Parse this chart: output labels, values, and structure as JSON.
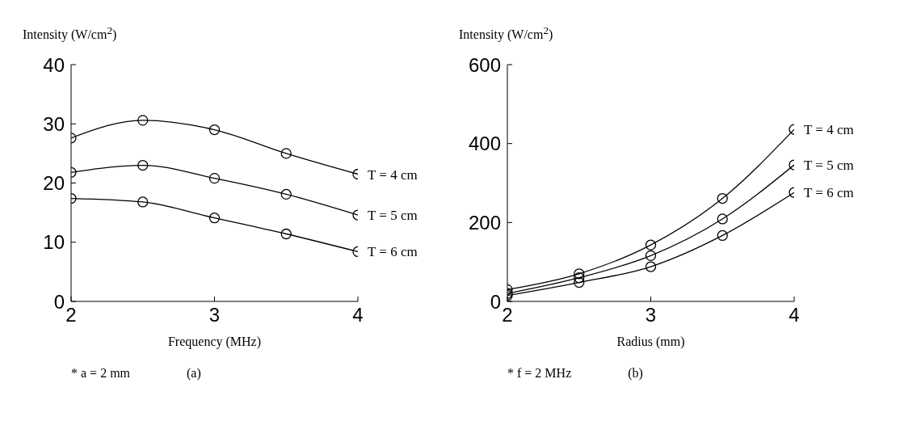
{
  "chart_data": [
    {
      "type": "line",
      "ylabel": "Intensity (W/cm$^{2}$)",
      "xlabel": "Frequency (MHz)",
      "x": [
        2,
        2.5,
        3,
        3.5,
        4
      ],
      "xlim": [
        2,
        4
      ],
      "xticks": [
        2,
        3,
        4
      ],
      "ylim": [
        0,
        40
      ],
      "yticks": [
        0,
        10,
        20,
        30,
        40
      ],
      "grid": false,
      "legend": false,
      "marker": "circle",
      "line_style": "solid",
      "series": [
        {
          "name": "T = 4 cm",
          "color": "#000000",
          "values": [
            27.6,
            30.6,
            29.0,
            25.0,
            21.5
          ]
        },
        {
          "name": "T = 5 cm",
          "color": "#000000",
          "values": [
            21.8,
            23.0,
            20.8,
            18.1,
            14.6
          ]
        },
        {
          "name": "T = 6 cm",
          "color": "#000000",
          "values": [
            17.4,
            16.8,
            14.1,
            11.4,
            8.4
          ]
        }
      ],
      "annotations": [
        "* a = 2 mm",
        "(a)"
      ]
    },
    {
      "type": "line",
      "ylabel": "Intensity (W/cm$^{2}$)",
      "xlabel": "Radius (mm)",
      "x": [
        2,
        2.5,
        3,
        3.5,
        4
      ],
      "xlim": [
        2,
        4
      ],
      "xticks": [
        2,
        3,
        4
      ],
      "ylim": [
        0,
        600
      ],
      "yticks": [
        0,
        200,
        400,
        600
      ],
      "grid": false,
      "legend": false,
      "marker": "circle",
      "line_style": "solid",
      "series": [
        {
          "name": "T = 4 cm",
          "color": "#000000",
          "values": [
            30,
            70,
            143,
            261,
            436
          ]
        },
        {
          "name": "T = 5 cm",
          "color": "#000000",
          "values": [
            20,
            60,
            116,
            209,
            346
          ]
        },
        {
          "name": "T = 6 cm",
          "color": "#000000",
          "values": [
            15,
            48,
            88,
            167,
            276
          ]
        }
      ],
      "annotations": [
        "* f = 2 MHz",
        "(b)"
      ]
    }
  ]
}
